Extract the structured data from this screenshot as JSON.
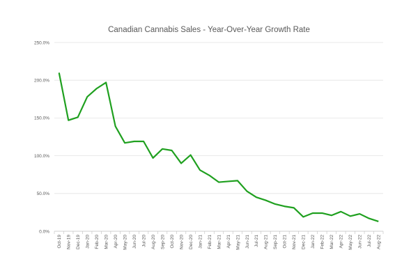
{
  "chart_data": {
    "type": "line",
    "title": "Canadian Cannabis Sales - Year-Over-Year Growth Rate",
    "xlabel": "",
    "ylabel": "",
    "ylim": [
      0,
      250
    ],
    "yticks": [
      "0.0%",
      "50.0%",
      "100.0%",
      "150.0%",
      "200.0%",
      "250.0%"
    ],
    "grid": true,
    "legend": "none",
    "line_color": "#1FA01F",
    "categories": [
      "Oct-19",
      "Nov-19",
      "Dec-19",
      "Jan-20",
      "Feb-20",
      "Mar-20",
      "Apr-20",
      "May-20",
      "Jun-20",
      "Jul-20",
      "Aug-20",
      "Sep-20",
      "Oct-20",
      "Nov-20",
      "Dec-20",
      "Jan-21",
      "Feb-21",
      "Mar-21",
      "Apr-21",
      "May-21",
      "Jun-21",
      "Jul-21",
      "Aug-21",
      "Sep-21",
      "Oct-21",
      "Nov-21",
      "Dec-21",
      "Jan-22",
      "Feb-22",
      "Mar-22",
      "Apr-22",
      "May-22",
      "Jun-22",
      "Jul-22",
      "Aug-22"
    ],
    "values": [
      210,
      147,
      151,
      178,
      189,
      197,
      139,
      117,
      119,
      119,
      97,
      109,
      107,
      90,
      101,
      81,
      74,
      65,
      66,
      67,
      53,
      45,
      41,
      36,
      33,
      31,
      19,
      24,
      24,
      21,
      26,
      20,
      23,
      17,
      13
    ]
  }
}
